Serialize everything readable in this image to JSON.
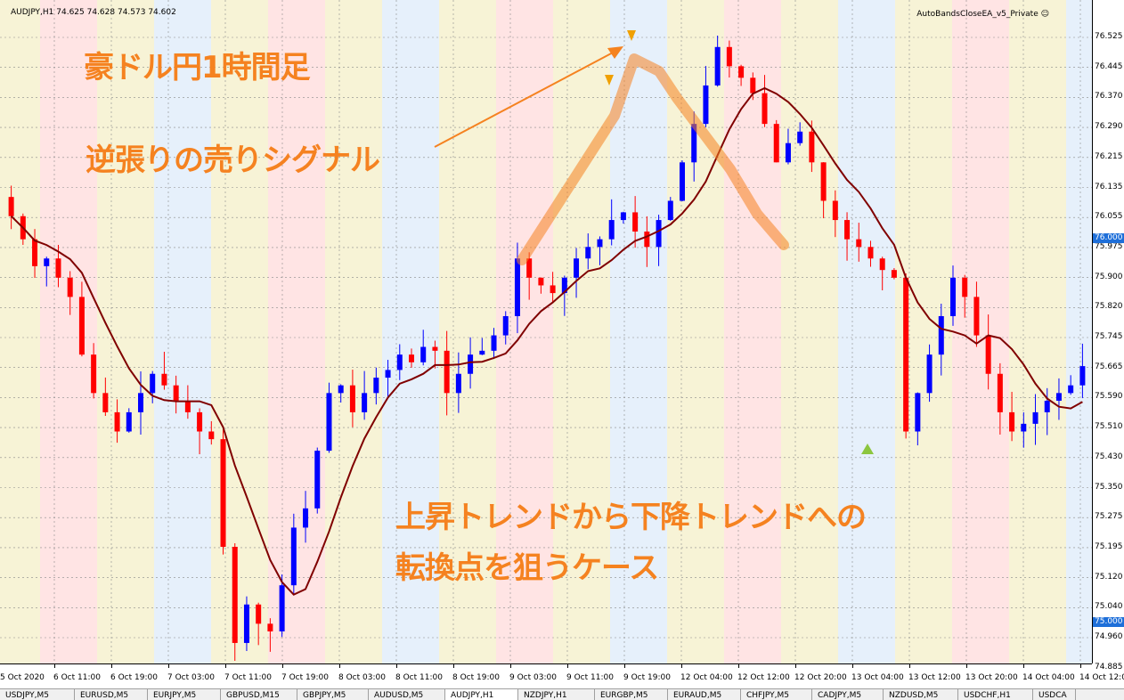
{
  "window": {
    "symbol_info": "AUDJPY,H1  74.625 74.628 74.573 74.602",
    "ea_label": "AutoBandsCloseEA_v5_Private ☺"
  },
  "price_axis": {
    "labels": [
      "76.525",
      "76.445",
      "76.370",
      "76.290",
      "76.215",
      "76.135",
      "76.055",
      "75.975",
      "75.900",
      "75.820",
      "75.745",
      "75.665",
      "75.590",
      "75.510",
      "75.430",
      "75.350",
      "75.275",
      "75.195",
      "75.120",
      "75.040",
      "74.960",
      "74.885"
    ],
    "current_tag": {
      "value": "76.000",
      "color": "#1e6fd9"
    },
    "low_tag": {
      "value": "75.000",
      "color": "#1e6fd9"
    }
  },
  "time_axis": {
    "labels": [
      "5 Oct 2020",
      "6 Oct 11:00",
      "6 Oct 19:00",
      "7 Oct 03:00",
      "7 Oct 11:00",
      "7 Oct 19:00",
      "8 Oct 03:00",
      "8 Oct 11:00",
      "8 Oct 19:00",
      "9 Oct 03:00",
      "9 Oct 11:00",
      "9 Oct 19:00",
      "12 Oct 04:00",
      "12 Oct 12:00",
      "12 Oct 20:00",
      "13 Oct 04:00",
      "13 Oct 12:00",
      "13 Oct 20:00",
      "14 Oct 04:00",
      "14 Oct 12:00"
    ]
  },
  "tabs": [
    "USDJPY,M5",
    "EURUSD,M5",
    "EURJPY,M5",
    "GBPUSD,M15",
    "GBPJPY,M5",
    "AUDUSD,M5",
    "AUDJPY,H1",
    "NZDJPY,H1",
    "EURGBP,M5",
    "EURAUD,M5",
    "CHFJPY,M5",
    "CADJPY,M5",
    "NZDUSD,M5",
    "USDCHF,H1",
    "USDCA"
  ],
  "active_tab": "AUDJPY,H1",
  "annotations": {
    "title": "豪ドル円1時間足",
    "signal": "逆張りの売りシグナル",
    "case_line1": "上昇トレンドから下降トレンドへの",
    "case_line2": "転換点を狙うケース"
  },
  "colors": {
    "bull": "#0000ff",
    "bear": "#ff0000",
    "annotation": "#f58220",
    "band_red": "#ffe4e4",
    "band_blue": "#e6f0fb",
    "band_yellow": "#f7f3d6",
    "ma_main": "#800000"
  },
  "chart_data": {
    "type": "candlestick",
    "y_range": [
      74.885,
      76.525
    ],
    "closes": [
      76.06,
      76.0,
      75.93,
      75.95,
      75.9,
      75.85,
      75.7,
      75.6,
      75.55,
      75.5,
      75.55,
      75.6,
      75.65,
      75.62,
      75.58,
      75.55,
      75.5,
      75.48,
      75.2,
      74.95,
      75.05,
      75.0,
      74.98,
      75.1,
      75.25,
      75.3,
      75.45,
      75.6,
      75.62,
      75.55,
      75.6,
      75.64,
      75.66,
      75.7,
      75.68,
      75.72,
      75.71,
      75.6,
      75.65,
      75.7,
      75.71,
      75.75,
      75.8,
      75.95,
      75.9,
      75.88,
      75.86,
      75.9,
      75.95,
      75.98,
      76.0,
      76.05,
      76.07,
      76.02,
      75.98,
      76.05,
      76.1,
      76.2,
      76.3,
      76.4,
      76.5,
      76.45,
      76.42,
      76.38,
      76.3,
      76.2,
      76.25,
      76.28,
      76.2,
      76.1,
      76.05,
      76.0,
      75.98,
      75.95,
      75.92,
      75.9,
      75.5,
      75.6,
      75.7,
      75.8,
      75.9,
      75.85,
      75.75,
      75.65,
      75.55,
      75.5,
      75.52,
      75.55,
      75.58,
      75.6,
      75.62,
      75.67
    ]
  }
}
